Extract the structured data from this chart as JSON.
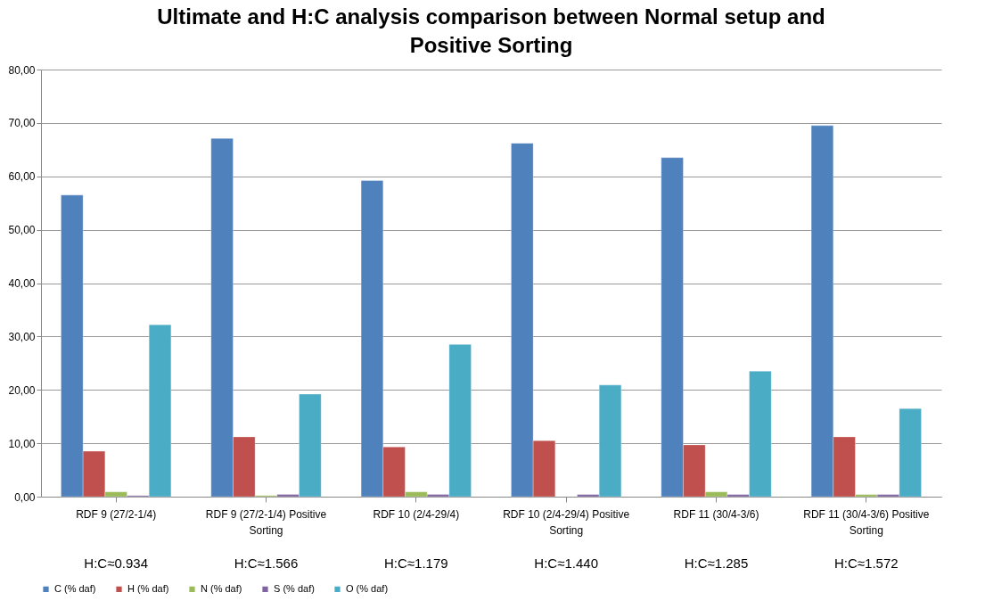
{
  "chart_data": {
    "type": "bar",
    "title": "Ultimate and H:C analysis comparison between Normal setup and Positive Sorting",
    "categories": [
      "RDF 9 (27/2-1/4)",
      "RDF 9 (27/2-1/4) Positive Sorting",
      "RDF 10 (2/4-29/4)",
      "RDF 10 (2/4-29/4) Positive Sorting",
      "RDF 11 (30/4-3/6)",
      "RDF 11 (30/4-3/6) Positive Sorting"
    ],
    "series": [
      {
        "name": "C (% daf)",
        "color": "#4f81bd",
        "values": [
          56.5,
          67.1,
          59.2,
          66.2,
          63.5,
          69.5
        ]
      },
      {
        "name": "H (% daf)",
        "color": "#c0504d",
        "values": [
          8.5,
          11.2,
          9.3,
          10.5,
          9.7,
          11.2
        ]
      },
      {
        "name": "N (% daf)",
        "color": "#9bbb59",
        "values": [
          0.9,
          0.2,
          0.9,
          null,
          0.9,
          0.4
        ]
      },
      {
        "name": "S (% daf)",
        "color": "#8064a2",
        "values": [
          0.2,
          0.4,
          0.4,
          0.4,
          0.4,
          0.4
        ]
      },
      {
        "name": "O (% daf)",
        "color": "#4bacc6",
        "values": [
          32.2,
          19.2,
          28.5,
          20.9,
          23.5,
          16.5
        ]
      }
    ],
    "ylim": [
      0,
      80
    ],
    "yticks": [
      {
        "value": 0,
        "label": "0,00"
      },
      {
        "value": 10,
        "label": "10,00"
      },
      {
        "value": 20,
        "label": "20,00"
      },
      {
        "value": 30,
        "label": "30,00"
      },
      {
        "value": 40,
        "label": "40,00"
      },
      {
        "value": 50,
        "label": "50,00"
      },
      {
        "value": 60,
        "label": "60,00"
      },
      {
        "value": 70,
        "label": "70,00"
      },
      {
        "value": 80,
        "label": "80,00"
      }
    ],
    "grid": "y",
    "legend": "bottom",
    "annotations": [
      "H:C≈0.934",
      "H:C≈1.566",
      "H:C≈1.179",
      "H:C≈1.440",
      "H:C≈1.285",
      "H:C≈1.572"
    ]
  }
}
